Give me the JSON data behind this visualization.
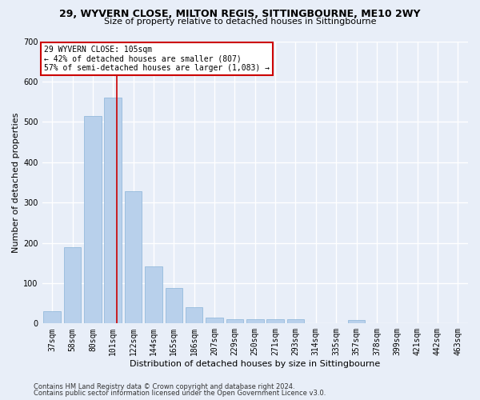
{
  "title": "29, WYVERN CLOSE, MILTON REGIS, SITTINGBOURNE, ME10 2WY",
  "subtitle": "Size of property relative to detached houses in Sittingbourne",
  "xlabel": "Distribution of detached houses by size in Sittingbourne",
  "ylabel": "Number of detached properties",
  "footer1": "Contains HM Land Registry data © Crown copyright and database right 2024.",
  "footer2": "Contains public sector information licensed under the Open Government Licence v3.0.",
  "categories": [
    "37sqm",
    "58sqm",
    "80sqm",
    "101sqm",
    "122sqm",
    "144sqm",
    "165sqm",
    "186sqm",
    "207sqm",
    "229sqm",
    "250sqm",
    "271sqm",
    "293sqm",
    "314sqm",
    "335sqm",
    "357sqm",
    "378sqm",
    "399sqm",
    "421sqm",
    "442sqm",
    "463sqm"
  ],
  "values": [
    30,
    190,
    515,
    560,
    328,
    142,
    87,
    40,
    14,
    11,
    10,
    10,
    10,
    0,
    0,
    8,
    0,
    0,
    0,
    0,
    0
  ],
  "bar_color": "#b8d0eb",
  "bar_edge_color": "#8ab4d8",
  "bg_color": "#e8eef8",
  "grid_color": "#ffffff",
  "vline_color": "#cc0000",
  "vline_pos": 3.18,
  "annotation_line1": "29 WYVERN CLOSE: 105sqm",
  "annotation_line2": "← 42% of detached houses are smaller (807)",
  "annotation_line3": "57% of semi-detached houses are larger (1,083) →",
  "annotation_box_bg": "#ffffff",
  "annotation_box_edge": "#cc0000",
  "ylim_max": 700,
  "yticks": [
    0,
    100,
    200,
    300,
    400,
    500,
    600,
    700
  ],
  "title_fontsize": 9,
  "subtitle_fontsize": 8,
  "axis_label_fontsize": 8,
  "tick_fontsize": 7,
  "footer_fontsize": 6
}
